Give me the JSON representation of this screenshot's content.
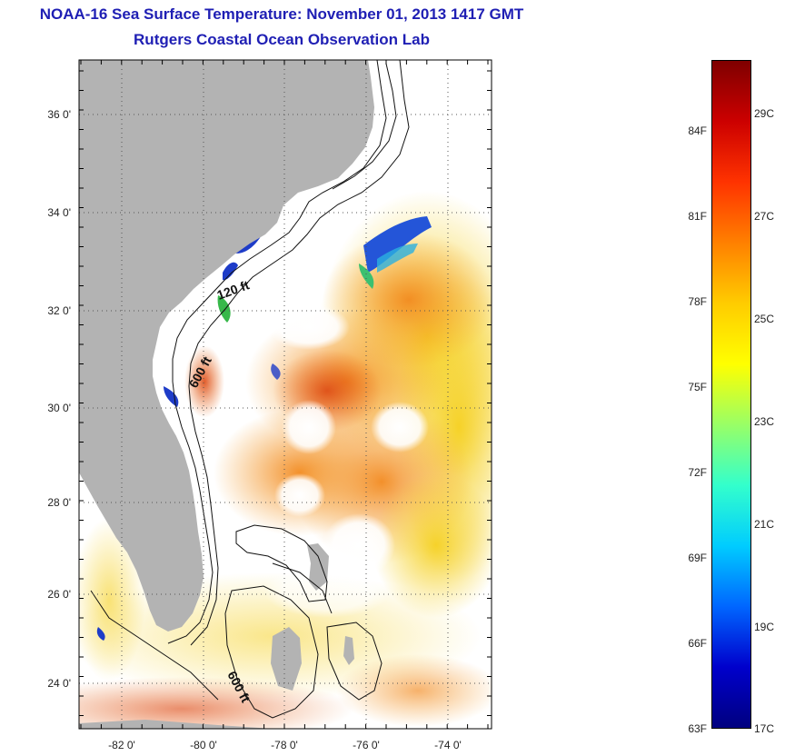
{
  "header": {
    "title": "NOAA-16 Sea Surface Temperature:  November 01, 2013 1417 GMT",
    "subtitle": "Rutgers Coastal Ocean Observation Lab"
  },
  "map": {
    "lat_ticks": [
      "36 0'",
      "34 0'",
      "32 0'",
      "30 0'",
      "28 0'",
      "26 0'",
      "24 0'"
    ],
    "lon_ticks": [
      "-82 0'",
      "-80 0'",
      "-78 0'",
      "-76 0'",
      "-74 0'"
    ],
    "contour_labels": [
      "120 ft",
      "600 ft",
      "600 ft"
    ],
    "colors": {
      "land": "#b3b3b3",
      "no_data": "#ffffff",
      "warm_offshore": "#f08a1e",
      "gulf_stream": "#e25b18",
      "cool_shelf": "#1e3cc8"
    }
  },
  "colorbar": {
    "min_f": "63F",
    "min_c": "17C",
    "f_labels": [
      "84F",
      "81F",
      "78F",
      "75F",
      "72F",
      "69F",
      "66F"
    ],
    "c_labels": [
      "29C",
      "27C",
      "25C",
      "23C",
      "21C",
      "19C"
    ],
    "gradient": [
      "#7f0000",
      "#cc0000",
      "#ff3300",
      "#ff8000",
      "#ffcc00",
      "#ffff00",
      "#99ff66",
      "#33ffcc",
      "#00ccff",
      "#0066ff",
      "#0000cc",
      "#00007f"
    ]
  }
}
